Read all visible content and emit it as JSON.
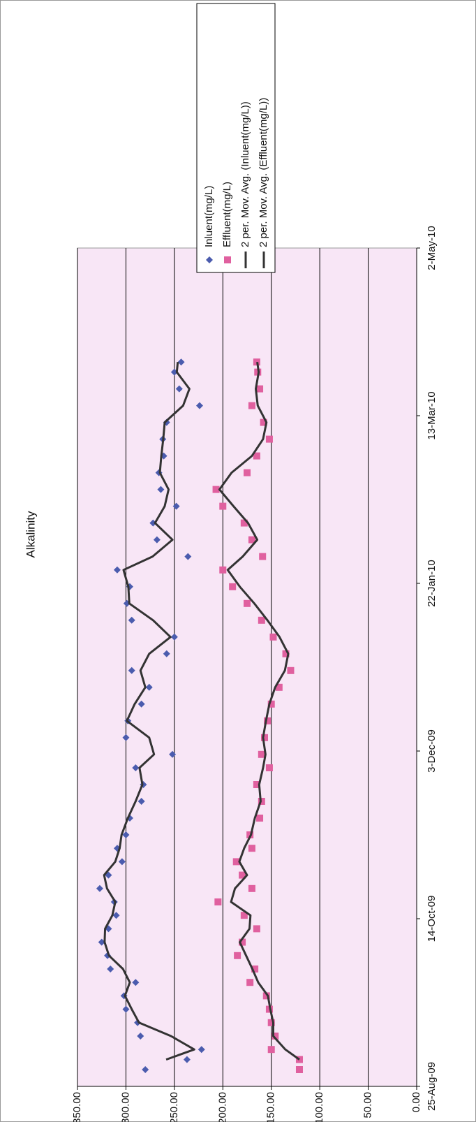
{
  "chart_data": {
    "type": "scatter",
    "title": "Alkalinity",
    "x": [
      "2009-08-30",
      "2009-09-02",
      "2009-09-05",
      "2009-09-09",
      "2009-09-13",
      "2009-09-17",
      "2009-09-21",
      "2009-09-25",
      "2009-09-29",
      "2009-10-03",
      "2009-10-07",
      "2009-10-11",
      "2009-10-15",
      "2009-10-19",
      "2009-10-23",
      "2009-10-27",
      "2009-10-31",
      "2009-11-04",
      "2009-11-08",
      "2009-11-13",
      "2009-11-18",
      "2009-11-23",
      "2009-11-28",
      "2009-12-02",
      "2009-12-07",
      "2009-12-12",
      "2009-12-17",
      "2009-12-22",
      "2009-12-27",
      "2010-01-01",
      "2010-01-06",
      "2010-01-11",
      "2010-01-16",
      "2010-01-21",
      "2010-01-26",
      "2010-01-30",
      "2010-02-04",
      "2010-02-09",
      "2010-02-14",
      "2010-02-19",
      "2010-02-24",
      "2010-03-01",
      "2010-03-06",
      "2010-03-11",
      "2010-03-16",
      "2010-03-21",
      "2010-03-26",
      "2010-03-29"
    ],
    "series": [
      {
        "name": "Inluent(mg/L)",
        "color": "#4b5cae",
        "mode": "diamond",
        "values": [
          280,
          237,
          222,
          285,
          288,
          300,
          302,
          290,
          316,
          319,
          325,
          318,
          310,
          312,
          327,
          318,
          304,
          309,
          300,
          296,
          284,
          282,
          290,
          252,
          300,
          298,
          284,
          276,
          294,
          258,
          250,
          294,
          299,
          296,
          309,
          236,
          268,
          272,
          248,
          264,
          266,
          261,
          262,
          258,
          224,
          245,
          250,
          243
        ]
      },
      {
        "name": "Effluent(mg/L)",
        "color": "#e0609f",
        "mode": "square",
        "values": [
          121,
          121,
          150,
          146,
          150,
          152,
          155,
          172,
          167,
          185,
          180,
          165,
          178,
          205,
          170,
          180,
          186,
          170,
          172,
          162,
          160,
          165,
          152,
          160,
          157,
          154,
          150,
          142,
          130,
          135,
          148,
          160,
          175,
          190,
          200,
          159,
          170,
          178,
          200,
          207,
          175,
          165,
          152,
          158,
          170,
          162,
          164,
          165
        ]
      },
      {
        "name": "2 per. Mov. Avg. (Inluent(mg/L))",
        "color": "#333333",
        "mode": "line",
        "values": [
          null,
          258.5,
          229.5,
          253.5,
          286.5,
          294,
          301,
          296,
          303,
          317.5,
          322,
          321.5,
          314,
          311,
          319.5,
          322.5,
          311,
          306.5,
          304.5,
          298,
          290,
          283,
          286,
          271,
          276,
          299,
          291,
          280,
          285,
          276,
          254,
          272,
          296.5,
          297.5,
          302.5,
          272.5,
          252,
          270,
          260,
          256,
          265,
          263.5,
          261.5,
          260,
          241,
          234.5,
          247.5,
          246.5
        ]
      },
      {
        "name": "2 per. Mov. Avg. (Effluent(mg/L))",
        "color": "#333333",
        "mode": "line",
        "values": [
          null,
          121,
          135.5,
          148,
          148,
          151,
          153.5,
          163.5,
          169.5,
          176,
          182.5,
          172.5,
          171.5,
          191.5,
          187.5,
          175,
          183,
          178,
          171,
          167,
          161,
          162.5,
          158.5,
          156,
          158.5,
          155.5,
          152,
          146,
          136,
          132.5,
          141.5,
          154,
          167.5,
          182.5,
          195,
          179.5,
          164.5,
          174,
          189,
          203.5,
          191,
          170,
          158.5,
          155,
          164,
          166,
          163,
          164.5
        ]
      }
    ],
    "xlim": [
      "2009-08-25",
      "2010-05-02"
    ],
    "xticks": [
      {
        "value": "2009-08-25",
        "label": "25-Aug-09"
      },
      {
        "value": "2009-10-14",
        "label": "14-Oct-09"
      },
      {
        "value": "2009-12-03",
        "label": "3-Dec-09"
      },
      {
        "value": "2010-01-22",
        "label": "22-Jan-10"
      },
      {
        "value": "2010-03-13",
        "label": "13-Mar-10"
      },
      {
        "value": "2010-05-02",
        "label": "2-May-10"
      }
    ],
    "ylim": [
      0,
      350
    ],
    "yticks": [
      {
        "value": 0,
        "label": "0.00"
      },
      {
        "value": 50,
        "label": "50.00"
      },
      {
        "value": 100,
        "label": "100.00"
      },
      {
        "value": 150,
        "label": "150.00"
      },
      {
        "value": 200,
        "label": "200.00"
      },
      {
        "value": 250,
        "label": "250.00"
      },
      {
        "value": 300,
        "label": "300.00"
      },
      {
        "value": 350,
        "label": "350.00"
      }
    ],
    "grid": true,
    "legend": "top-right"
  }
}
